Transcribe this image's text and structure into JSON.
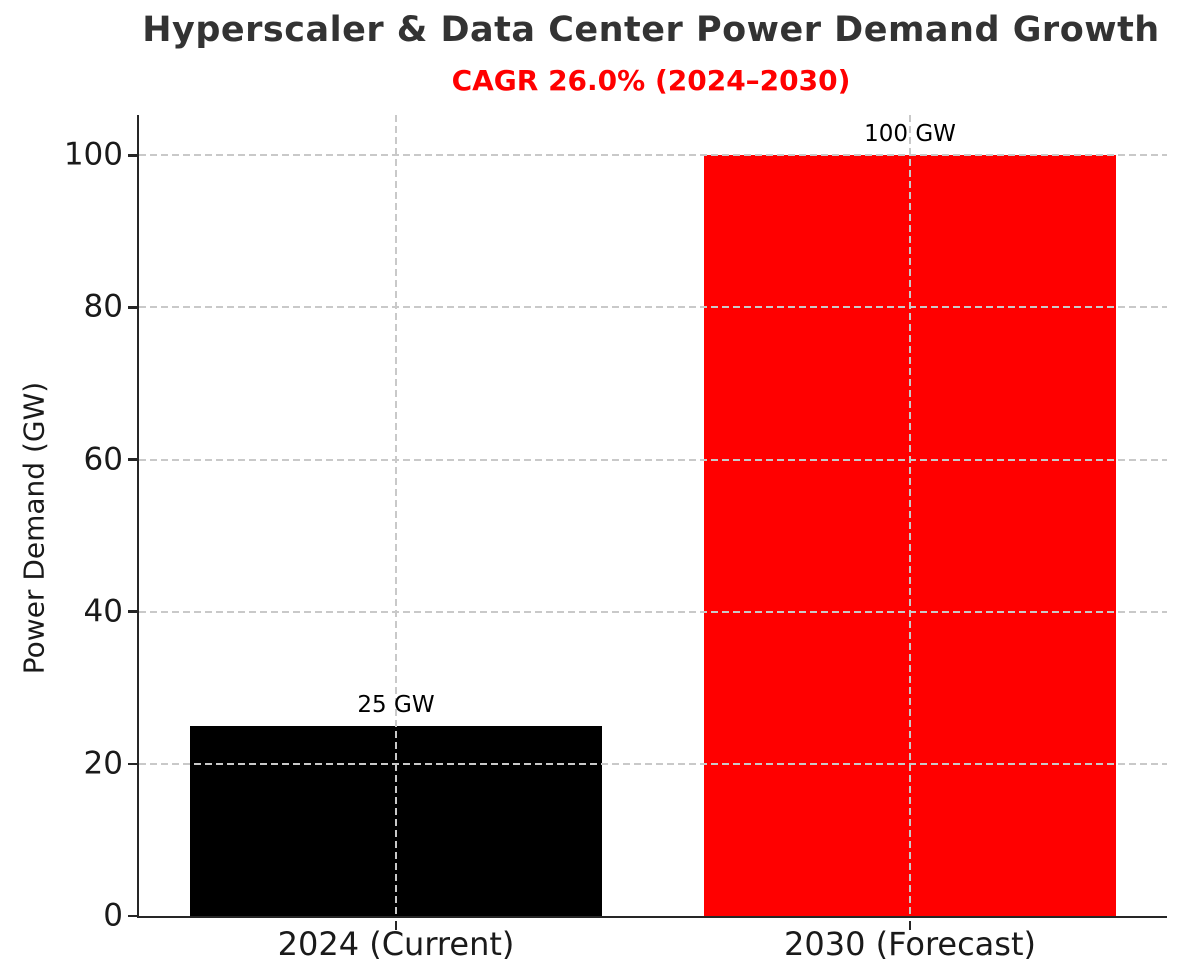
{
  "chart_data": {
    "type": "bar",
    "title": "Hyperscaler & Data Center Power Demand Growth",
    "subtitle": "CAGR 26.0% (2024–2030)",
    "categories": [
      "2024 (Current)",
      "2030 (Forecast)"
    ],
    "values": [
      25,
      100
    ],
    "bar_labels": [
      "25 GW",
      "100 GW"
    ],
    "bar_colors": [
      "#000000",
      "#ff0000"
    ],
    "xlabel": "",
    "ylabel": "Power Demand (GW)",
    "yticks": [
      0,
      20,
      40,
      60,
      80,
      100
    ],
    "ylim": [
      0,
      105.3
    ],
    "grid": "dashed, light gray, drawn above bars, horizontal at yticks and vertical at bar centers",
    "legend": "none",
    "colors": {
      "title": "#333333",
      "subtitle": "#ff0000",
      "axis": "#262626",
      "tick_label": "#1a1a1a",
      "gridline": "#c9c9c9"
    }
  }
}
